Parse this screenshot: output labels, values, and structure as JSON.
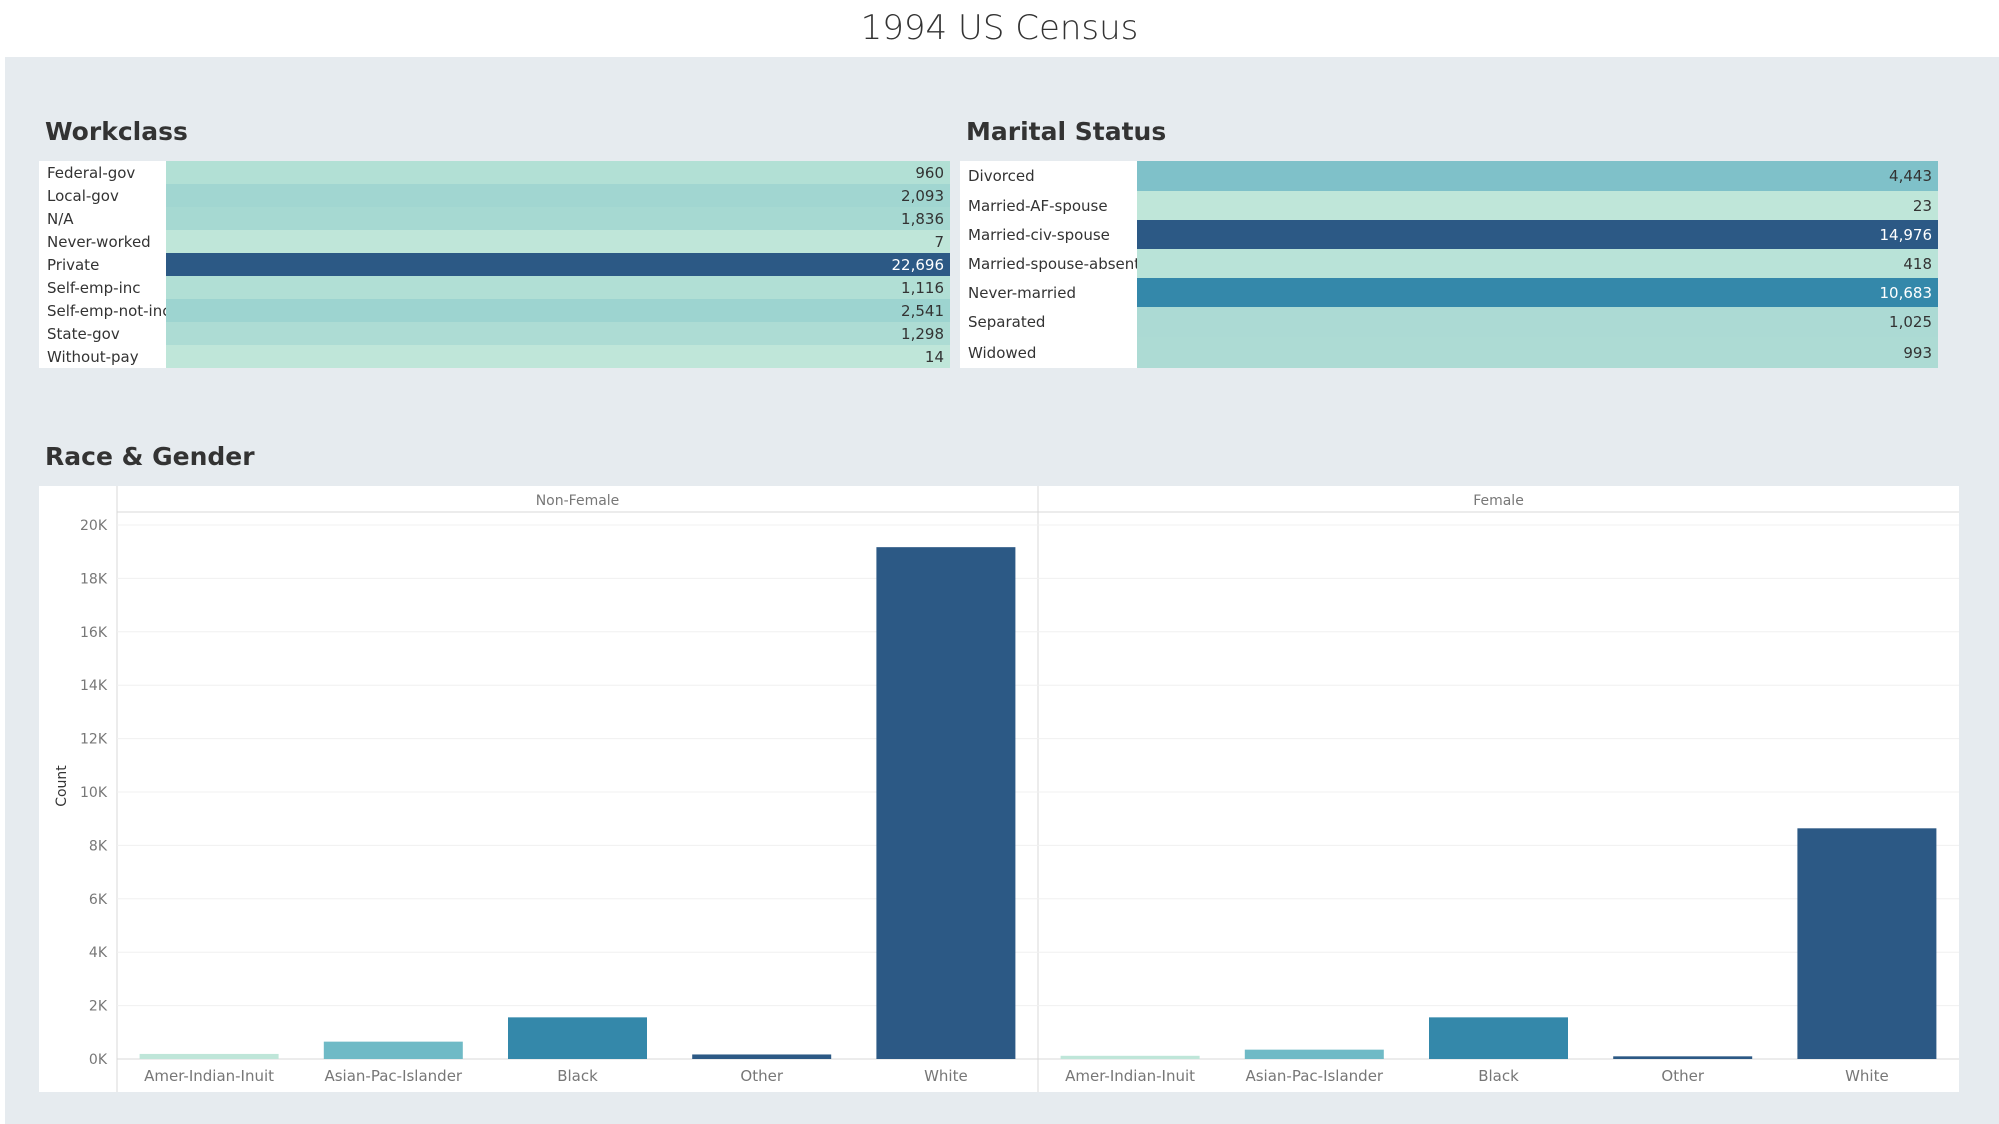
{
  "title": "1994 US Census",
  "colors": {
    "background": "#e6ebef",
    "panel": "#ffffff",
    "scale_light": "#bfe6d9",
    "scale_mid": "#6fbac6",
    "scale_teal": "#3488aa",
    "scale_dark": "#2c5985"
  },
  "chart_data": [
    {
      "type": "table",
      "title": "Workclass",
      "categories": [
        "Federal-gov",
        "Local-gov",
        "N/A",
        "Never-worked",
        "Private",
        "Self-emp-inc",
        "Self-emp-not-inc",
        "State-gov",
        "Without-pay"
      ],
      "values": [
        960,
        2093,
        1836,
        7,
        22696,
        1116,
        2541,
        1298,
        14
      ],
      "labels": [
        "960",
        "2,093",
        "1,836",
        "7",
        "22,696",
        "1,116",
        "2,541",
        "1,298",
        "14"
      ],
      "colors": [
        "#b2e0d5",
        "#a1d6d1",
        "#a6d9d2",
        "#bfe6d9",
        "#2c5985",
        "#b1dfd5",
        "#9dd4d0",
        "#addcd4",
        "#bfe6d9"
      ],
      "label_colors": [
        "#333",
        "#333",
        "#333",
        "#333",
        "#ffffff",
        "#333",
        "#333",
        "#333",
        "#333"
      ]
    },
    {
      "type": "table",
      "title": "Marital Status",
      "categories": [
        "Divorced",
        "Married-AF-spouse",
        "Married-civ-spouse",
        "Married-spouse-absent",
        "Never-married",
        "Separated",
        "Widowed"
      ],
      "values": [
        4443,
        23,
        14976,
        418,
        10683,
        1025,
        993
      ],
      "labels": [
        "4,443",
        "23",
        "14,976",
        "418",
        "10,683",
        "1,025",
        "993"
      ],
      "colors": [
        "#7fc1c9",
        "#bfe6d9",
        "#2c5985",
        "#b9e3d8",
        "#3488aa",
        "#acdad4",
        "#addbd4"
      ],
      "label_colors": [
        "#333",
        "#333",
        "#ffffff",
        "#333",
        "#ffffff",
        "#333",
        "#333"
      ]
    },
    {
      "type": "bar",
      "title": "Race & Gender",
      "ylabel": "Count",
      "ylim": [
        0,
        20000
      ],
      "yticks": [
        0,
        2000,
        4000,
        6000,
        8000,
        10000,
        12000,
        14000,
        16000,
        18000,
        20000
      ],
      "ytick_labels": [
        "0K",
        "2K",
        "4K",
        "6K",
        "8K",
        "10K",
        "12K",
        "14K",
        "16K",
        "18K",
        "20K"
      ],
      "categories": [
        "Amer-Indian-Inuit",
        "Asian-Pac-Islander",
        "Black",
        "Other",
        "White"
      ],
      "bar_colors": [
        "#bfe6d9",
        "#6fbac6",
        "#3488aa",
        "#2c5985",
        "#2c5985"
      ],
      "panels": [
        {
          "name": "Non-Female",
          "values": [
            190,
            650,
            1560,
            170,
            19170
          ]
        },
        {
          "name": "Female",
          "values": [
            120,
            350,
            1560,
            100,
            8640
          ]
        }
      ],
      "grid": true
    }
  ]
}
